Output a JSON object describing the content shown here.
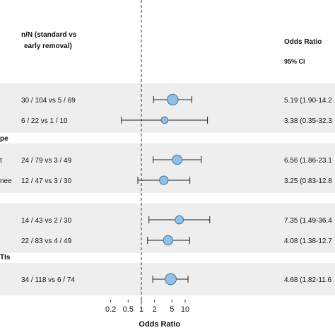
{
  "chart_data": {
    "type": "forest",
    "headers": {
      "nn_line1": "n/N (standard vs",
      "nn_line2": "early removal)",
      "or_label": "Odds Ratio",
      "ci_label": "95% CI"
    },
    "subgroups": [
      {
        "label": "pe"
      },
      {
        "label": "TIs"
      }
    ],
    "rows": [
      {
        "left_label": "",
        "nn": "30 / 104 vs 5 / 69",
        "or_text": "5.19 (1.90-14.2",
        "or": 5.19,
        "lo": 1.9,
        "hi": 14.2,
        "weight": 1.3
      },
      {
        "left_label": "",
        "nn": "6 / 22 vs 1 / 10",
        "or_text": "3.38 (0.35-32.3",
        "or": 3.38,
        "lo": 0.35,
        "hi": 32.3,
        "weight": 0.5
      },
      {
        "left_label": "t",
        "nn": "24 / 79 vs 3 / 49",
        "or_text": "6.56 (1.86-23.1",
        "or": 6.56,
        "lo": 1.86,
        "hi": 23.1,
        "weight": 1.05
      },
      {
        "left_label": "nee",
        "nn": "12 / 47 vs 3 / 30",
        "or_text": "3.25 (0.83-12.8",
        "or": 3.25,
        "lo": 0.83,
        "hi": 12.8,
        "weight": 0.85
      },
      {
        "left_label": "",
        "nn": "14 / 43 vs 2 / 30",
        "or_text": "7.35 (1.49-36.4",
        "or": 7.35,
        "lo": 1.49,
        "hi": 36.4,
        "weight": 0.8
      },
      {
        "left_label": "",
        "nn": "22 / 83 vs 4 / 49",
        "or_text": "4.08 (1.38-12.7",
        "or": 4.08,
        "lo": 1.38,
        "hi": 12.7,
        "weight": 1.05
      },
      {
        "left_label": "",
        "nn": "34 / 118 vs 6 / 74",
        "or_text": "4.68 (1.82-11.6",
        "or": 4.68,
        "lo": 1.82,
        "hi": 11.6,
        "weight": 1.35
      }
    ],
    "x_ticks": [
      0.2,
      0.5,
      1,
      2,
      5,
      10
    ],
    "x_tick_labels": [
      "0.2",
      "0.5",
      "1",
      "2",
      "5",
      "10"
    ],
    "xlabel": "Odds Ratio",
    "x_scale": "log",
    "reference_line": 1,
    "marker_color": "#8fc1e8",
    "marker_stroke": "#3a6e99"
  }
}
